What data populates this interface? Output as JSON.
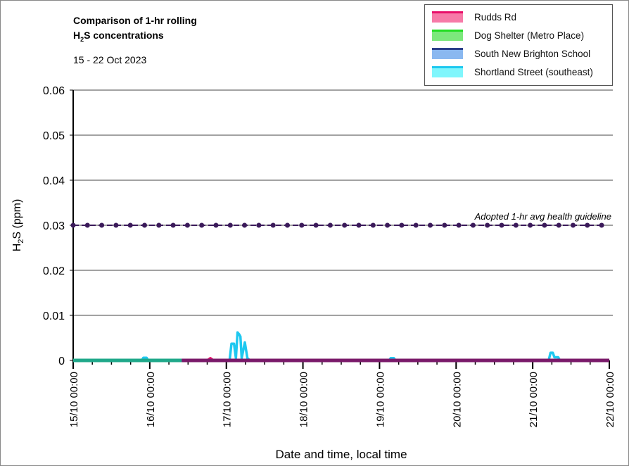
{
  "chart_data": {
    "type": "line",
    "title_line1": "Comparison of 1-hr rolling",
    "title_line2_pre": "H",
    "title_line2_sub": "2",
    "title_line2_post": "S concentrations",
    "subtitle": "15 - 22 Oct 2023",
    "xlabel": "Date and time, local time",
    "ylabel_pre": "H",
    "ylabel_sub": "2",
    "ylabel_post": "S (ppm)",
    "ylim": [
      0,
      0.06
    ],
    "yticks": [
      "0",
      "0.01",
      "0.02",
      "0.03",
      "0.04",
      "0.05",
      "0.06"
    ],
    "xlim_hours": [
      0,
      168
    ],
    "xticks": [
      "15/10 00:00",
      "16/10 00:00",
      "17/10 00:00",
      "18/10 00:00",
      "19/10 00:00",
      "20/10 00:00",
      "21/10 00:00",
      "22/10 00:00"
    ],
    "guideline": {
      "value": 0.03,
      "label": "Adopted 1-hr avg health guideline",
      "color": "#3b1a5a"
    },
    "series": [
      {
        "name": "Rudds Rd",
        "color": "#e8106a",
        "fill": "#f77aa8",
        "points": [
          [
            34,
            0
          ],
          [
            42,
            0
          ],
          [
            43,
            0.0005
          ],
          [
            44,
            0
          ],
          [
            168,
            0
          ]
        ]
      },
      {
        "name": "Dog Shelter (Metro Place)",
        "color": "#22dd22",
        "fill": "#7ce87c",
        "points": [
          [
            0,
            0
          ],
          [
            34,
            0
          ]
        ]
      },
      {
        "name": "South New Brighton School",
        "color": "#2a3f8a",
        "fill": "#8ab8f0",
        "points": [
          [
            34,
            0
          ],
          [
            168,
            0
          ]
        ]
      },
      {
        "name": "Shortland Street (southeast)",
        "color": "#1ec8f0",
        "fill": "#80f6fc",
        "points": [
          [
            0,
            0
          ],
          [
            21.5,
            0
          ],
          [
            22,
            0.0006
          ],
          [
            23,
            0.0006
          ],
          [
            23.5,
            0
          ],
          [
            49,
            0
          ],
          [
            49.6,
            0.0037
          ],
          [
            50.4,
            0.0037
          ],
          [
            51,
            0.0005
          ],
          [
            51.5,
            0.0062
          ],
          [
            52,
            0.0058
          ],
          [
            52.4,
            0.0053
          ],
          [
            52.8,
            0.0005
          ],
          [
            53.8,
            0.004
          ],
          [
            54.6,
            0.0005
          ],
          [
            55.4,
            0
          ],
          [
            99,
            0
          ],
          [
            99.5,
            0.0005
          ],
          [
            100.5,
            0.0005
          ],
          [
            101,
            0
          ],
          [
            149,
            0
          ],
          [
            149.6,
            0.0017
          ],
          [
            150.3,
            0.0017
          ],
          [
            150.8,
            0.0007
          ],
          [
            152,
            0.0007
          ],
          [
            152.5,
            0
          ],
          [
            168,
            0
          ]
        ]
      }
    ]
  }
}
